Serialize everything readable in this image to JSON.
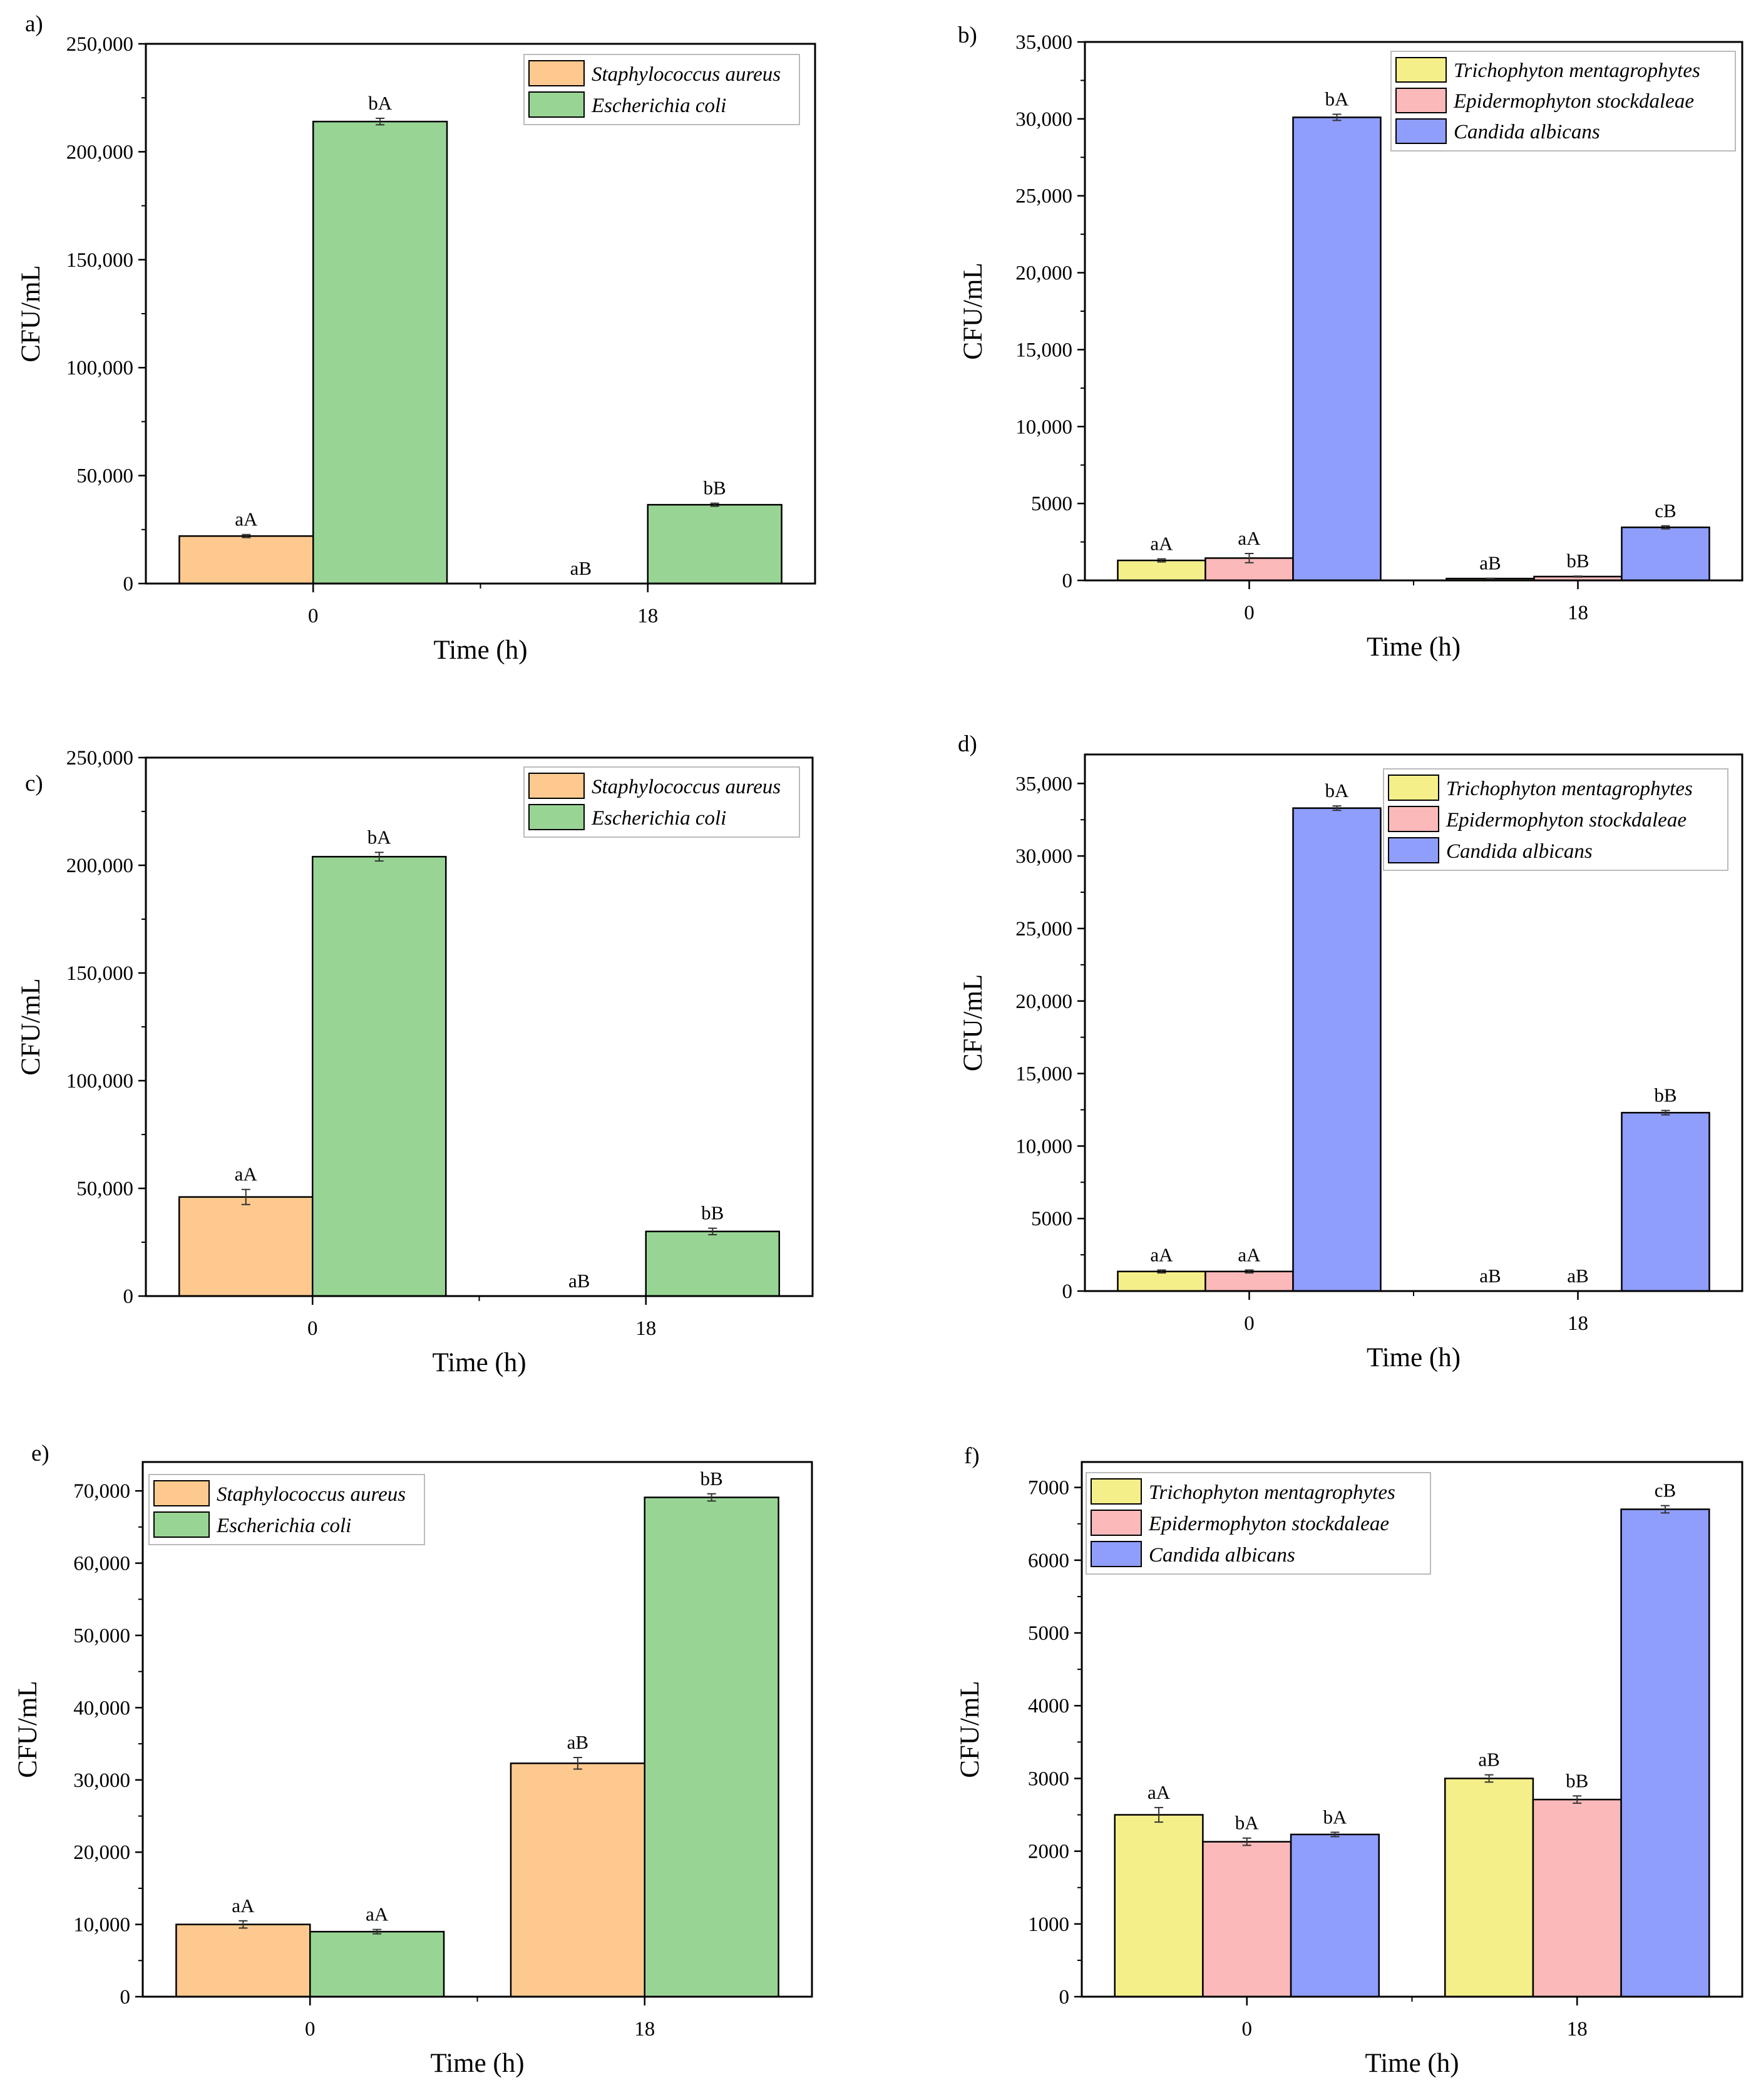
{
  "chart_data": [
    {
      "panel_label": "a)",
      "type": "bar",
      "xlabel": "Time (h)",
      "ylabel": "CFU/mL",
      "ylim": [
        0,
        250000
      ],
      "yticks": [
        "0",
        "50,000",
        "100,000",
        "150,000",
        "200,000",
        "250,000"
      ],
      "ytick_values": [
        0,
        50000,
        100000,
        150000,
        200000,
        250000
      ],
      "categories": [
        "0",
        "18"
      ],
      "series": [
        {
          "name": "Staphylococcus aureus",
          "color": "#FDC98E",
          "values": [
            22000,
            0
          ],
          "errors": [
            700,
            0
          ],
          "labels": [
            "aA",
            "aB"
          ]
        },
        {
          "name": "Escherichia coli",
          "color": "#98D594",
          "values": [
            214000,
            36500
          ],
          "errors": [
            1500,
            700
          ],
          "labels": [
            "bA",
            "bB"
          ]
        }
      ]
    },
    {
      "panel_label": "b)",
      "type": "bar",
      "xlabel": "Time (h)",
      "ylabel": "CFU/mL",
      "ylim": [
        0,
        35000
      ],
      "yticks": [
        "0",
        "5000",
        "10,000",
        "15,000",
        "20,000",
        "25,000",
        "30,000",
        "35,000"
      ],
      "ytick_values": [
        0,
        5000,
        10000,
        15000,
        20000,
        25000,
        30000,
        35000
      ],
      "categories": [
        "0",
        "18"
      ],
      "series": [
        {
          "name": "Trichophyton mentagrophytes",
          "color": "#F5EF8A",
          "values": [
            1300,
            120
          ],
          "errors": [
            100,
            20
          ],
          "labels": [
            "aA",
            "aB"
          ]
        },
        {
          "name": "Epidermophyton stockdaleae",
          "color": "#FBB9B9",
          "values": [
            1450,
            250
          ],
          "errors": [
            300,
            30
          ],
          "labels": [
            "aA",
            "bB"
          ]
        },
        {
          "name": "Candida albicans",
          "color": "#8F9DFB",
          "values": [
            30100,
            3450
          ],
          "errors": [
            200,
            100
          ],
          "labels": [
            "bA",
            "cB"
          ]
        }
      ]
    },
    {
      "panel_label": "c)",
      "type": "bar",
      "xlabel": "Time (h)",
      "ylabel": "CFU/mL",
      "ylim": [
        0,
        250000
      ],
      "yticks": [
        "0",
        "50,000",
        "100,000",
        "150,000",
        "200,000",
        "250,000"
      ],
      "ytick_values": [
        0,
        50000,
        100000,
        150000,
        200000,
        250000
      ],
      "categories": [
        "0",
        "18"
      ],
      "series": [
        {
          "name": "Staphylococcus aureus",
          "color": "#FDC98E",
          "values": [
            46000,
            0
          ],
          "errors": [
            3500,
            0
          ],
          "labels": [
            "aA",
            "aB"
          ]
        },
        {
          "name": "Escherichia coli",
          "color": "#98D594",
          "values": [
            204000,
            30000
          ],
          "errors": [
            2000,
            1500
          ],
          "labels": [
            "bA",
            "bB"
          ]
        }
      ]
    },
    {
      "panel_label": "d)",
      "type": "bar",
      "xlabel": "Time (h)",
      "ylabel": "CFU/mL",
      "ylim": [
        0,
        37000
      ],
      "yticks": [
        "0",
        "5000",
        "10,000",
        "15,000",
        "20,000",
        "25,000",
        "30,000",
        "35,000"
      ],
      "ytick_values": [
        0,
        5000,
        10000,
        15000,
        20000,
        25000,
        30000,
        35000
      ],
      "categories": [
        "0",
        "18"
      ],
      "series": [
        {
          "name": "Trichophyton mentagrophytes",
          "color": "#F5EF8A",
          "values": [
            1350,
            0
          ],
          "errors": [
            100,
            0
          ],
          "labels": [
            "aA",
            "aB"
          ]
        },
        {
          "name": "Epidermophyton stockdaleae",
          "color": "#FBB9B9",
          "values": [
            1350,
            0
          ],
          "errors": [
            100,
            0
          ],
          "labels": [
            "aA",
            "aB"
          ]
        },
        {
          "name": "Candida albicans",
          "color": "#8F9DFB",
          "values": [
            33300,
            12300
          ],
          "errors": [
            150,
            150
          ],
          "labels": [
            "bA",
            "bB"
          ]
        }
      ]
    },
    {
      "panel_label": "e)",
      "type": "bar",
      "xlabel": "Time (h)",
      "ylabel": "CFU/mL",
      "ylim": [
        0,
        74000
      ],
      "yticks": [
        "0",
        "10,000",
        "20,000",
        "30,000",
        "40,000",
        "50,000",
        "60,000",
        "70,000"
      ],
      "ytick_values": [
        0,
        10000,
        20000,
        30000,
        40000,
        50000,
        60000,
        70000
      ],
      "categories": [
        "0",
        "18"
      ],
      "series": [
        {
          "name": "Staphylococcus aureus",
          "color": "#FDC98E",
          "values": [
            10000,
            32300
          ],
          "errors": [
            500,
            800
          ],
          "labels": [
            "aA",
            "aB"
          ]
        },
        {
          "name": "Escherichia coli",
          "color": "#98D594",
          "values": [
            9000,
            69100
          ],
          "errors": [
            300,
            500
          ],
          "labels": [
            "aA",
            "bB"
          ]
        }
      ]
    },
    {
      "panel_label": "f)",
      "type": "bar",
      "xlabel": "Time (h)",
      "ylabel": "CFU/mL",
      "ylim": [
        0,
        7350
      ],
      "yticks": [
        "0",
        "1000",
        "2000",
        "3000",
        "4000",
        "5000",
        "6000",
        "7000"
      ],
      "ytick_values": [
        0,
        1000,
        2000,
        3000,
        4000,
        5000,
        6000,
        7000
      ],
      "categories": [
        "0",
        "18"
      ],
      "series": [
        {
          "name": "Trichophyton mentagrophytes",
          "color": "#F5EF8A",
          "values": [
            2500,
            3000
          ],
          "errors": [
            100,
            50
          ],
          "labels": [
            "aA",
            "aB"
          ]
        },
        {
          "name": "Epidermophyton stockdaleae",
          "color": "#FBB9B9",
          "values": [
            2130,
            2710
          ],
          "errors": [
            50,
            50
          ],
          "labels": [
            "bA",
            "bB"
          ]
        },
        {
          "name": "Candida albicans",
          "color": "#8F9DFB",
          "values": [
            2230,
            6700
          ],
          "errors": [
            30,
            50
          ],
          "labels": [
            "bA",
            "cB"
          ]
        }
      ]
    }
  ]
}
